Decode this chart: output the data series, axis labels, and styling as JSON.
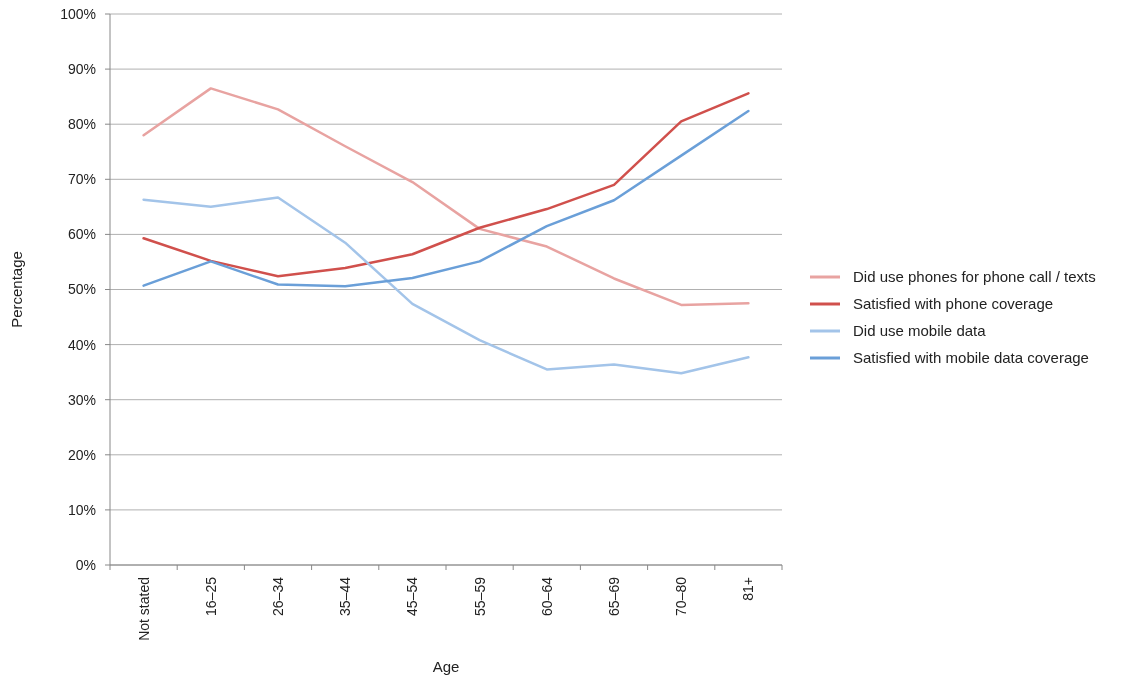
{
  "chart_data": {
    "type": "line",
    "xlabel": "Age",
    "ylabel": "Percentage",
    "categories": [
      "Not stated",
      "16–25",
      "26–34",
      "35–44",
      "45–54",
      "55–59",
      "60–64",
      "65–69",
      "70–80",
      "81+"
    ],
    "series": [
      {
        "name": "Did use phones for phone call / texts",
        "color": "#e8a3a1",
        "values": [
          78,
          86.5,
          82.7,
          76,
          69.5,
          61,
          57.8,
          52,
          47.2,
          47.5
        ]
      },
      {
        "name": "Satisfied with phone coverage",
        "color": "#d0504c",
        "values": [
          59.3,
          55.2,
          52.4,
          53.9,
          56.4,
          61.2,
          64.6,
          69,
          80.5,
          85.6
        ]
      },
      {
        "name": "Did use mobile data",
        "color": "#a3c4e9",
        "values": [
          66.3,
          65,
          66.7,
          58.5,
          47.4,
          40.8,
          35.5,
          36.4,
          34.8,
          37.7
        ]
      },
      {
        "name": "Satisfied with mobile data coverage",
        "color": "#6a9fd8",
        "values": [
          50.7,
          55.1,
          50.9,
          50.6,
          52.1,
          55.1,
          61.5,
          66.2,
          74.3,
          82.4
        ]
      }
    ],
    "ylim": [
      0,
      100
    ],
    "yticks": [
      {
        "value": 0,
        "label": "0%"
      },
      {
        "value": 10,
        "label": "10%"
      },
      {
        "value": 20,
        "label": "20%"
      },
      {
        "value": 30,
        "label": "30%"
      },
      {
        "value": 40,
        "label": "40%"
      },
      {
        "value": 50,
        "label": "50%"
      },
      {
        "value": 60,
        "label": "60%"
      },
      {
        "value": 70,
        "label": "70%"
      },
      {
        "value": 80,
        "label": "80%"
      },
      {
        "value": 90,
        "label": "90%"
      },
      {
        "value": 100,
        "label": "100%"
      }
    ],
    "grid": "y",
    "legend": "right",
    "marker": "none",
    "line_style": "solid"
  }
}
